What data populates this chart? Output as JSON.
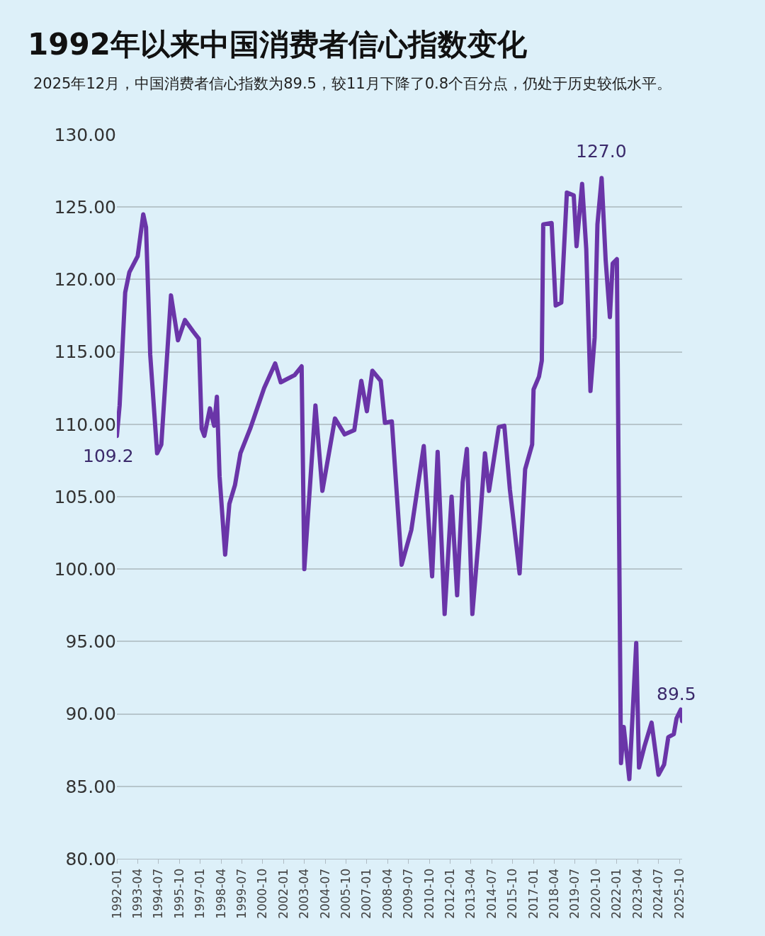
{
  "chart_data": {
    "type": "line",
    "title": "1992年以来中国消费者信心指数变化",
    "subtitle": "2025年12月，中国消费者信心指数为89.5，较11月下降了0.8个百分点，仍处于历史较低水平。",
    "x": [
      "1992-01",
      "1992-03",
      "1992-07",
      "1992-10",
      "1993-04",
      "1993-08",
      "1993-10",
      "1994-01",
      "1994-06",
      "1994-09",
      "1995-04",
      "1995-09",
      "1996-02",
      "1996-08",
      "1996-12",
      "1997-02",
      "1997-04",
      "1997-08",
      "1997-11",
      "1998-01",
      "1998-03",
      "1998-07",
      "1998-10",
      "1999-02",
      "1999-06",
      "2000-01",
      "2000-11",
      "2001-07",
      "2001-11",
      "2002-09",
      "2003-02",
      "2003-04",
      "2003-12",
      "2004-05",
      "2005-02",
      "2005-09",
      "2006-04",
      "2006-09",
      "2007-01",
      "2007-05",
      "2007-11",
      "2008-02",
      "2008-07",
      "2009-02",
      "2009-09",
      "2010-06",
      "2010-12",
      "2011-04",
      "2011-09",
      "2012-02",
      "2012-06",
      "2012-10",
      "2013-01",
      "2013-05",
      "2013-10",
      "2014-02",
      "2014-05",
      "2014-12",
      "2015-04",
      "2015-08",
      "2016-03",
      "2016-07",
      "2016-12",
      "2017-01",
      "2017-05",
      "2017-07",
      "2017-08",
      "2018-02",
      "2018-05",
      "2018-09",
      "2019-01",
      "2019-06",
      "2019-08",
      "2019-12",
      "2020-03",
      "2020-06",
      "2020-09",
      "2020-11",
      "2021-02",
      "2021-05",
      "2021-08",
      "2021-10",
      "2022-01",
      "2022-04",
      "2022-06",
      "2022-10",
      "2023-03",
      "2023-05",
      "2023-09",
      "2024-02",
      "2024-07",
      "2024-11",
      "2025-02",
      "2025-06",
      "2025-08",
      "2025-11",
      "2025-12"
    ],
    "series": [
      {
        "color": "#6a35a8",
        "values": [
          109.2,
          111.3,
          119.1,
          120.5,
          121.6,
          124.5,
          123.6,
          114.8,
          108.0,
          108.6,
          118.9,
          115.8,
          117.2,
          116.4,
          115.9,
          109.7,
          109.2,
          111.1,
          109.9,
          111.9,
          106.4,
          101.0,
          104.5,
          105.8,
          108.0,
          109.7,
          112.5,
          114.2,
          112.9,
          113.4,
          114.0,
          100.0,
          111.3,
          105.4,
          110.4,
          109.3,
          109.6,
          113.0,
          110.9,
          113.7,
          113.0,
          110.1,
          110.2,
          100.3,
          102.7,
          108.5,
          99.5,
          108.1,
          96.9,
          105.0,
          98.2,
          106.0,
          108.3,
          96.9,
          102.7,
          108.0,
          105.4,
          109.8,
          109.9,
          105.5,
          99.7,
          106.9,
          108.6,
          112.4,
          113.3,
          114.4,
          123.8,
          123.9,
          118.2,
          118.4,
          126.0,
          125.8,
          122.3,
          126.6,
          122.1,
          112.3,
          116.0,
          123.8,
          127.0,
          121.3,
          117.4,
          121.1,
          121.4,
          86.6,
          89.1,
          85.5,
          94.9,
          86.3,
          87.8,
          89.4,
          85.8,
          86.5,
          88.4,
          88.6,
          89.7,
          90.3,
          89.5
        ]
      }
    ],
    "annotations": [
      {
        "text": "109.2",
        "x": "1992-01",
        "y": 109.2
      },
      {
        "text": "127.0",
        "x": "2021-02",
        "y": 127.0
      },
      {
        "text": "89.5",
        "x": "2025-12",
        "y": 89.5
      }
    ],
    "xlim": [
      "1992-01",
      "2025-12"
    ],
    "xticks": [
      "1992-01",
      "1993-04",
      "1994-07",
      "1995-10",
      "1997-01",
      "1998-04",
      "1999-07",
      "2000-10",
      "2002-01",
      "2003-04",
      "2004-07",
      "2005-10",
      "2007-01",
      "2008-04",
      "2009-07",
      "2010-10",
      "2012-01",
      "2013-04",
      "2014-07",
      "2015-10",
      "2017-01",
      "2018-04",
      "2019-07",
      "2020-10",
      "2022-01",
      "2023-04",
      "2024-07",
      "2025-10"
    ],
    "ylim": [
      80,
      130
    ],
    "yticks": [
      {
        "value": 80,
        "label": "80.00"
      },
      {
        "value": 85,
        "label": "85.00"
      },
      {
        "value": 90,
        "label": "90.00"
      },
      {
        "value": 95,
        "label": "95.00"
      },
      {
        "value": 100,
        "label": "100.00"
      },
      {
        "value": 105,
        "label": "105.00"
      },
      {
        "value": 110,
        "label": "110.00"
      },
      {
        "value": 115,
        "label": "115.00"
      },
      {
        "value": 120,
        "label": "120.00"
      },
      {
        "value": 125,
        "label": "125.00"
      },
      {
        "value": 130,
        "label": "130.00"
      }
    ],
    "grid": "y",
    "line_style": "solid"
  }
}
